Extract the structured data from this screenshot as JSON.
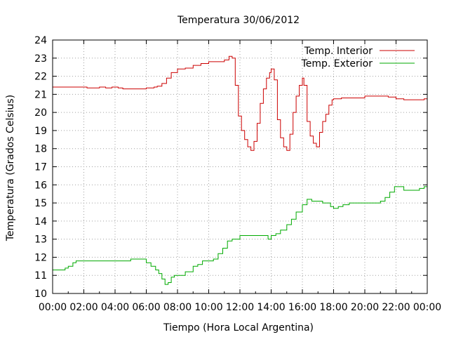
{
  "chart_data": {
    "type": "line",
    "title": "Temperatura 30/06/2012",
    "xlabel": "Tiempo (Hora Local Argentina)",
    "ylabel": "Temperatura (Grados Celsius)",
    "xlim": [
      0,
      24
    ],
    "ylim": [
      10,
      24
    ],
    "grid": true,
    "legend_position": "top-right",
    "x_tick_labels": [
      "00:00",
      "02:00",
      "04:00",
      "06:00",
      "08:00",
      "10:00",
      "12:00",
      "14:00",
      "16:00",
      "18:00",
      "20:00",
      "22:00",
      "00:00"
    ],
    "y_tick_labels": [
      "10",
      "11",
      "12",
      "13",
      "14",
      "15",
      "16",
      "17",
      "18",
      "19",
      "20",
      "21",
      "22",
      "23",
      "24"
    ],
    "series": [
      {
        "name": "Temp. Interior",
        "color": "#cc0000",
        "x": [
          0,
          2.0,
          2.2,
          3.0,
          3.4,
          3.8,
          4.2,
          4.5,
          5.5,
          6.0,
          6.5,
          6.7,
          7.0,
          7.3,
          7.6,
          8.0,
          8.5,
          9.0,
          9.5,
          10.0,
          10.5,
          11.0,
          11.3,
          11.5,
          11.7,
          11.9,
          12.1,
          12.3,
          12.5,
          12.7,
          12.9,
          13.1,
          13.3,
          13.5,
          13.7,
          13.9,
          14.0,
          14.2,
          14.4,
          14.6,
          14.8,
          15.0,
          15.2,
          15.4,
          15.6,
          15.8,
          16.0,
          16.1,
          16.3,
          16.5,
          16.7,
          16.9,
          17.1,
          17.3,
          17.5,
          17.7,
          17.9,
          18.0,
          18.5,
          19.0,
          19.5,
          20.0,
          20.5,
          21.0,
          21.5,
          22.0,
          22.5,
          23.0,
          23.5,
          23.8,
          24.0
        ],
        "values": [
          21.4,
          21.4,
          21.35,
          21.4,
          21.35,
          21.4,
          21.35,
          21.3,
          21.3,
          21.35,
          21.4,
          21.45,
          21.6,
          21.9,
          22.2,
          22.4,
          22.45,
          22.6,
          22.7,
          22.8,
          22.8,
          22.9,
          23.1,
          23.0,
          21.5,
          19.8,
          19.0,
          18.5,
          18.1,
          17.9,
          18.4,
          19.4,
          20.5,
          21.3,
          21.9,
          22.2,
          22.4,
          21.8,
          19.6,
          18.6,
          18.1,
          17.9,
          18.8,
          20.0,
          20.9,
          21.5,
          21.9,
          21.5,
          19.5,
          18.7,
          18.3,
          18.1,
          18.9,
          19.5,
          19.9,
          20.4,
          20.7,
          20.75,
          20.8,
          20.8,
          20.8,
          20.9,
          20.9,
          20.9,
          20.85,
          20.75,
          20.7,
          20.7,
          20.7,
          20.75,
          20.7
        ]
      },
      {
        "name": "Temp. Exterior",
        "color": "#00aa00",
        "x": [
          0,
          0.5,
          0.8,
          1.0,
          1.3,
          1.5,
          2.0,
          3.0,
          4.0,
          4.5,
          5.0,
          5.3,
          5.6,
          6.0,
          6.3,
          6.6,
          6.8,
          7.0,
          7.2,
          7.4,
          7.6,
          7.8,
          8.0,
          8.5,
          9.0,
          9.3,
          9.6,
          10.0,
          10.3,
          10.6,
          10.9,
          11.2,
          11.5,
          12.0,
          12.3,
          12.6,
          13.0,
          13.5,
          13.8,
          14.0,
          14.3,
          14.6,
          15.0,
          15.3,
          15.6,
          16.0,
          16.3,
          16.6,
          17.0,
          17.3,
          17.6,
          17.8,
          18.0,
          18.3,
          18.6,
          19.0,
          19.5,
          20.0,
          20.5,
          21.0,
          21.3,
          21.6,
          21.9,
          22.2,
          22.5,
          22.8,
          23.0,
          23.5,
          23.8,
          24.0
        ],
        "values": [
          11.3,
          11.3,
          11.4,
          11.5,
          11.7,
          11.8,
          11.8,
          11.8,
          11.8,
          11.8,
          11.9,
          11.9,
          11.9,
          11.7,
          11.5,
          11.3,
          11.1,
          10.8,
          10.5,
          10.6,
          10.9,
          11.0,
          11.0,
          11.2,
          11.5,
          11.6,
          11.8,
          11.8,
          11.9,
          12.2,
          12.5,
          12.9,
          13.0,
          13.2,
          13.2,
          13.2,
          13.2,
          13.2,
          13.0,
          13.2,
          13.3,
          13.5,
          13.8,
          14.1,
          14.5,
          14.9,
          15.2,
          15.1,
          15.1,
          15.0,
          15.0,
          14.8,
          14.7,
          14.8,
          14.9,
          15.0,
          15.0,
          15.0,
          15.0,
          15.1,
          15.3,
          15.6,
          15.9,
          15.9,
          15.7,
          15.7,
          15.7,
          15.8,
          15.9,
          16.0
        ]
      }
    ]
  }
}
